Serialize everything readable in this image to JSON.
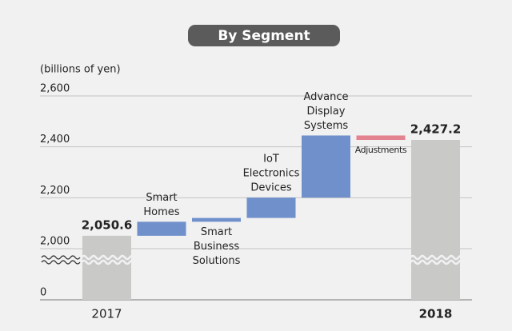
{
  "chart_data": {
    "type": "waterfall",
    "title": "By Segment",
    "y_label": "(billions of yen)",
    "categories": [
      [
        "2017"
      ],
      [
        "Smart",
        "Homes"
      ],
      [
        "Smart",
        "Business",
        "Solutions"
      ],
      [
        "IoT",
        "Electronics",
        "Devices"
      ],
      [
        "Advance",
        "Display",
        "Systems"
      ],
      [
        "Adjustments"
      ],
      [
        "2018"
      ]
    ],
    "values": [
      2050.6,
      55,
      15,
      80,
      244,
      -17.4,
      2427.2
    ],
    "value_labels": [
      "2,050.6",
      null,
      null,
      null,
      null,
      null,
      "2,427.2"
    ],
    "is_total": [
      true,
      false,
      false,
      false,
      false,
      false,
      true
    ],
    "colors": {
      "total": "#c9c9c7",
      "increase": "#7090cc",
      "decrease": "#e3838f"
    },
    "ylim": [
      0,
      2600
    ],
    "yticks": [
      0,
      {
        "value": 2000,
        "label": "2,000"
      },
      {
        "value": 2200,
        "label": "2,200"
      },
      {
        "value": 2400,
        "label": "2,400"
      },
      {
        "value": 2600,
        "label": "2,600"
      }
    ],
    "axis_break": true,
    "grid": true
  }
}
